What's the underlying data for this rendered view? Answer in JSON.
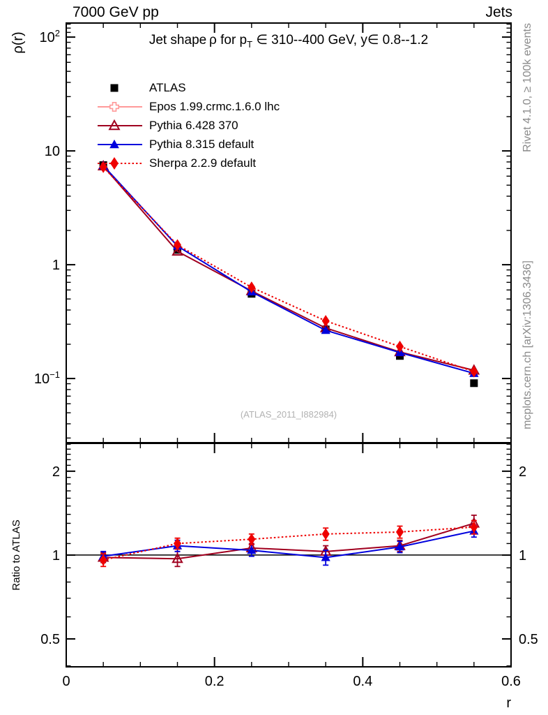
{
  "header": {
    "left": "7000 GeV pp",
    "right": "Jets"
  },
  "title": {
    "part1": "Jet shape ρ for p",
    "sub": "T",
    "part2": " ∈ 310--400 GeV, y∈ 0.8--1.2"
  },
  "watermark": "(ATLAS_2011_I882984)",
  "credits": {
    "top": "Rivet 4.1.0, ≥ 100k events",
    "bottom": "mcplots.cern.ch [arXiv:1306.3436]"
  },
  "axes": {
    "x": {
      "label": "r",
      "min": 0,
      "max": 0.6,
      "minor_step": 0.05,
      "ticks": [
        {
          "v": 0,
          "t": "0"
        },
        {
          "v": 0.2,
          "t": "0.2"
        },
        {
          "v": 0.4,
          "t": "0.4"
        },
        {
          "v": 0.6,
          "t": "0.6"
        }
      ]
    },
    "y_main": {
      "label": "ρ(r)",
      "scale": "log",
      "min": 0.0273,
      "max": 132.9,
      "ticks": [
        {
          "v": 100,
          "base": "10",
          "exp": "2"
        },
        {
          "v": 10,
          "base": "10"
        },
        {
          "v": 1,
          "base": "1"
        },
        {
          "v": 0.1,
          "base": "10",
          "exp": "−1"
        }
      ]
    },
    "y_ratio": {
      "label": "Ratio to ATLAS",
      "scale": "log",
      "min": 0.397,
      "max": 2.517,
      "ticks": [
        {
          "v": 2,
          "t": "2"
        },
        {
          "v": 1,
          "t": "1"
        },
        {
          "v": 0.5,
          "t": "0.5"
        }
      ]
    }
  },
  "legend": {
    "items": [
      {
        "label": "ATLAS",
        "color": "#000000",
        "marker": "square-filled",
        "line": "none"
      },
      {
        "label": "Epos 1.99.crmc.1.6.0 lhc",
        "color": "#ff9999",
        "marker": "plus-open",
        "line": "solid"
      },
      {
        "label": "Pythia 6.428 370",
        "color": "#a00020",
        "marker": "triangle-open",
        "line": "solid"
      },
      {
        "label": "Pythia 8.315 default",
        "color": "#0000dd",
        "marker": "triangle-filled",
        "line": "solid"
      },
      {
        "label": "Sherpa 2.2.9 default",
        "color": "#ee0000",
        "marker": "diamond-filled",
        "line": "dotted"
      }
    ]
  },
  "chart_data": [
    {
      "type": "line",
      "panel": "main",
      "title": "Jet shape rho for pT in 310--400 GeV, y in 0.8--1.2",
      "xlabel": "r",
      "ylabel": "rho(r)",
      "xscale": "linear",
      "yscale": "log",
      "xlim": [
        0,
        0.6
      ],
      "ylim": [
        0.0273,
        132.9
      ],
      "grid": false,
      "legend_position": "top-left-inside",
      "x": [
        0.05,
        0.15,
        0.25,
        0.35,
        0.45,
        0.55
      ],
      "series": [
        {
          "name": "ATLAS",
          "legend_index": 0,
          "marker_visible": true,
          "line_visible": false,
          "values": [
            7.5,
            1.35,
            0.555,
            0.27,
            0.158,
            0.091
          ],
          "rel_err": [
            0.03,
            0.03,
            0.03,
            0.03,
            0.04,
            0.04
          ]
        },
        {
          "name": "Epos 1.99.crmc.1.6.0 lhc",
          "legend_index": 1,
          "marker_visible": false,
          "line_visible": true,
          "values": [
            7.35,
            1.31,
            0.588,
            0.278,
            0.171,
            0.118
          ]
        },
        {
          "name": "Pythia 6.428 370",
          "legend_index": 2,
          "marker_visible": true,
          "line_visible": true,
          "values": [
            7.35,
            1.31,
            0.588,
            0.278,
            0.171,
            0.118
          ]
        },
        {
          "name": "Pythia 8.315 default",
          "legend_index": 3,
          "marker_visible": true,
          "line_visible": true,
          "values": [
            7.43,
            1.46,
            0.577,
            0.265,
            0.169,
            0.111
          ]
        },
        {
          "name": "Sherpa 2.2.9 default",
          "legend_index": 4,
          "marker_visible": true,
          "line_visible": true,
          "values": [
            7.2,
            1.49,
            0.633,
            0.321,
            0.191,
            0.115
          ]
        }
      ]
    },
    {
      "type": "line",
      "panel": "ratio",
      "ylabel": "Ratio to ATLAS",
      "xscale": "linear",
      "yscale": "log",
      "xlim": [
        0,
        0.6
      ],
      "ylim": [
        0.397,
        2.517
      ],
      "reference_line": 1,
      "x": [
        0.05,
        0.15,
        0.25,
        0.35,
        0.45,
        0.55
      ],
      "series": [
        {
          "name": "Epos 1.99.crmc.1.6.0 lhc",
          "legend_index": 1,
          "marker_visible": false,
          "line_visible": true,
          "values": [
            0.98,
            0.97,
            1.06,
            1.03,
            1.08,
            1.3
          ],
          "err": [
            0.04,
            0.05,
            0.04,
            0.05,
            0.05,
            0.08
          ]
        },
        {
          "name": "Pythia 6.428 370",
          "legend_index": 2,
          "marker_visible": true,
          "line_visible": true,
          "values": [
            0.98,
            0.97,
            1.06,
            1.03,
            1.08,
            1.3
          ],
          "err": [
            0.04,
            0.06,
            0.04,
            0.05,
            0.05,
            0.09
          ]
        },
        {
          "name": "Pythia 8.315 default",
          "legend_index": 3,
          "marker_visible": true,
          "line_visible": true,
          "values": [
            0.99,
            1.08,
            1.04,
            0.98,
            1.07,
            1.22
          ],
          "err": [
            0.04,
            0.05,
            0.05,
            0.06,
            0.05,
            0.06
          ]
        },
        {
          "name": "Sherpa 2.2.9 default",
          "legend_index": 4,
          "marker_visible": true,
          "line_visible": true,
          "values": [
            0.96,
            1.1,
            1.14,
            1.19,
            1.21,
            1.26
          ],
          "err": [
            0.05,
            0.05,
            0.05,
            0.06,
            0.06,
            0.07
          ]
        }
      ]
    }
  ]
}
